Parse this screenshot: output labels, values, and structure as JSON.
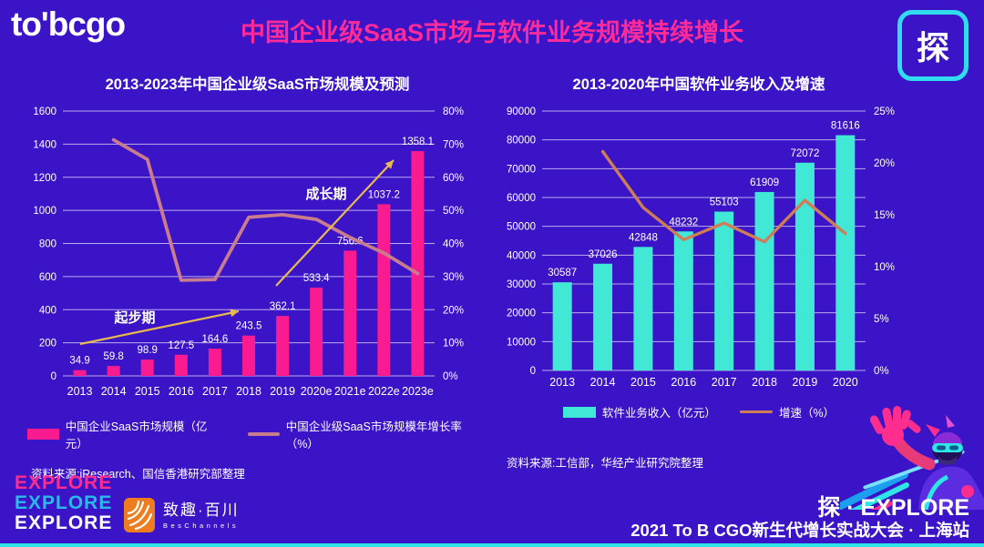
{
  "page": {
    "logo": "to'bcgo",
    "title": "中国企业级SaaS市场与软件业务规模持续增长",
    "badge": "探"
  },
  "colors": {
    "background": "#3a14c6",
    "title": "#ff2b98",
    "arrow": "#e9bb4e",
    "badge_border": "#30dcee",
    "bottom_bar": "#2be4e4",
    "gridline": "rgba(255,255,255,0.65)"
  },
  "chart_data": [
    {
      "type": "bar",
      "title": "2013-2023年中国企业级SaaS市场规模及预测",
      "categories": [
        "2013",
        "2014",
        "2015",
        "2016",
        "2017",
        "2018",
        "2019",
        "2020e",
        "2021e",
        "2022e",
        "2023e"
      ],
      "series": [
        {
          "name": "中国企业SaaS市场规模（亿元）",
          "type": "bar",
          "axis": "left",
          "color": "#fb1b90",
          "values": [
            34.9,
            59.8,
            98.9,
            127.5,
            164.6,
            243.5,
            362.1,
            533.4,
            756.6,
            1037.2,
            1358.1
          ]
        },
        {
          "name": "中国企业级SaaS市场规模年增长率（%）",
          "type": "line",
          "axis": "right",
          "color": "#c97c8e",
          "values": [
            null,
            71.3,
            65.4,
            28.9,
            29.1,
            47.9,
            48.7,
            47.3,
            41.8,
            37.1,
            30.9
          ]
        }
      ],
      "left_axis": {
        "min": 0,
        "max": 1600,
        "step": 200
      },
      "right_axis": {
        "min": 0,
        "max": 80,
        "step": 10,
        "suffix": "%"
      },
      "grid": true,
      "legend_position": "bottom",
      "annotations": [
        {
          "label": "起步期"
        },
        {
          "label": "成长期"
        }
      ],
      "source": "资料来源:iResearch、国信香港研究部整理"
    },
    {
      "type": "bar",
      "title": "2013-2020年中国软件业务收入及增速",
      "categories": [
        "2013",
        "2014",
        "2015",
        "2016",
        "2017",
        "2018",
        "2019",
        "2020"
      ],
      "series": [
        {
          "name": "软件业务收入（亿元）",
          "type": "bar",
          "axis": "left",
          "color": "#41e8d6",
          "values": [
            30587,
            37026,
            42848,
            48232,
            55103,
            61909,
            72072,
            81616
          ]
        },
        {
          "name": "增速（%）",
          "type": "line",
          "axis": "right",
          "color": "#cf7d56",
          "values": [
            null,
            21.1,
            15.7,
            12.6,
            14.2,
            12.4,
            16.4,
            13.2
          ]
        }
      ],
      "left_axis": {
        "min": 0,
        "max": 90000,
        "step": 10000
      },
      "right_axis": {
        "min": 0,
        "max": 25,
        "step": 5,
        "suffix": "%"
      },
      "grid": true,
      "legend_position": "bottom",
      "annotations": [],
      "source": "资料来源:工信部，华经产业研究院整理"
    }
  ],
  "footer": {
    "explore": [
      {
        "text": "EXPLORE",
        "color": "#ff2d8e"
      },
      {
        "text": "EXPLORE",
        "color": "#2bb9ea"
      },
      {
        "text": "EXPLORE",
        "color": "#ffffff"
      }
    ],
    "partner": {
      "name": "致趣·百川",
      "sub": "BesChannels"
    },
    "right_title": "探 · EXPLORE",
    "right_subtitle": "2021 To B CGO新生代增长实战大会 · 上海站"
  }
}
